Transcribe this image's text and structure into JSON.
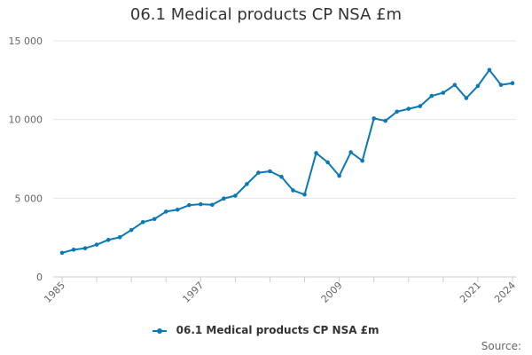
{
  "chart_data": {
    "type": "line",
    "title": "06.1 Medical products CP NSA £m",
    "xlabel": "",
    "ylabel": "",
    "x": [
      1985,
      1986,
      1987,
      1988,
      1989,
      1990,
      1991,
      1992,
      1993,
      1994,
      1995,
      1996,
      1997,
      1998,
      1999,
      2000,
      2001,
      2002,
      2003,
      2004,
      2005,
      2006,
      2007,
      2008,
      2009,
      2010,
      2011,
      2012,
      2013,
      2014,
      2015,
      2016,
      2017,
      2018,
      2019,
      2020,
      2021,
      2022,
      2023,
      2024
    ],
    "series": [
      {
        "name": "06.1 Medical products CP NSA £m",
        "values": [
          1530,
          1730,
          1820,
          2050,
          2350,
          2520,
          2980,
          3480,
          3680,
          4150,
          4270,
          4560,
          4620,
          4580,
          4980,
          5160,
          5900,
          6620,
          6710,
          6360,
          5500,
          5230,
          7870,
          7280,
          6420,
          7920,
          7380,
          10070,
          9920,
          10500,
          10680,
          10850,
          11500,
          11700,
          12200,
          11360,
          12130,
          13150,
          12200,
          12310
        ]
      }
    ],
    "ylim": [
      0,
      15000
    ],
    "yticks": [
      0,
      5000,
      10000,
      15000
    ],
    "ytick_labels": [
      "0",
      "5 000",
      "10 000",
      "15 000"
    ],
    "xtick_labels": [
      "1985",
      "1997",
      "2009",
      "2021",
      "2024"
    ],
    "grid": true,
    "legend": "bottom-center",
    "source_label": "Source:",
    "line_color": "#0b79b5"
  }
}
